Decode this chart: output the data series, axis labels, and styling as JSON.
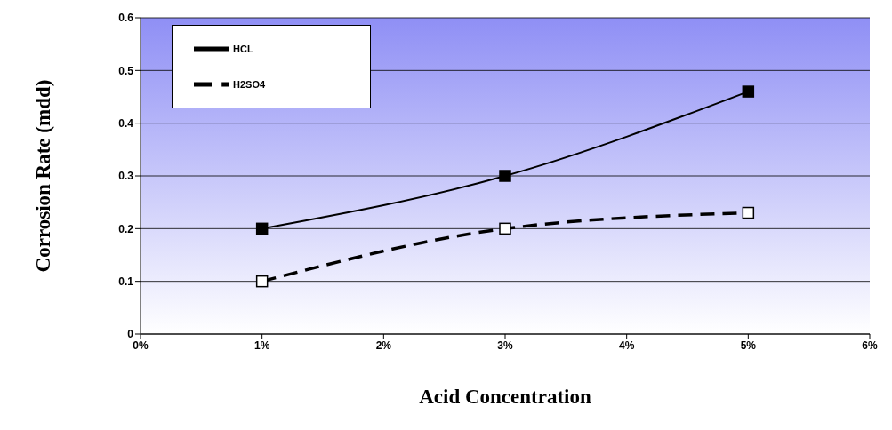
{
  "chart_data": {
    "type": "line",
    "xlabel": "Acid Concentration",
    "ylabel": "Corrosion Rate  (mdd)",
    "x": [
      1,
      3,
      5
    ],
    "series": [
      {
        "name": "HCL",
        "color": "#000000",
        "values": [
          0.2,
          0.3,
          0.46
        ],
        "marker": "square",
        "line_style": "solid"
      },
      {
        "name": "H2SO4",
        "color": "#000000",
        "values": [
          0.1,
          0.2,
          0.23
        ],
        "marker": "square",
        "line_style": "dashed"
      }
    ],
    "xlim": [
      0,
      6
    ],
    "xticks": [
      {
        "value": 0,
        "label": "0%"
      },
      {
        "value": 1,
        "label": "1%"
      },
      {
        "value": 2,
        "label": "2%"
      },
      {
        "value": 3,
        "label": "3%"
      },
      {
        "value": 4,
        "label": "4%"
      },
      {
        "value": 5,
        "label": "5%"
      },
      {
        "value": 6,
        "label": "6%"
      }
    ],
    "ylim": [
      0,
      0.6
    ],
    "yticks": [
      0,
      0.1,
      0.2,
      0.3,
      0.4,
      0.5,
      0.6
    ],
    "grid": "y",
    "legend": "top left"
  }
}
